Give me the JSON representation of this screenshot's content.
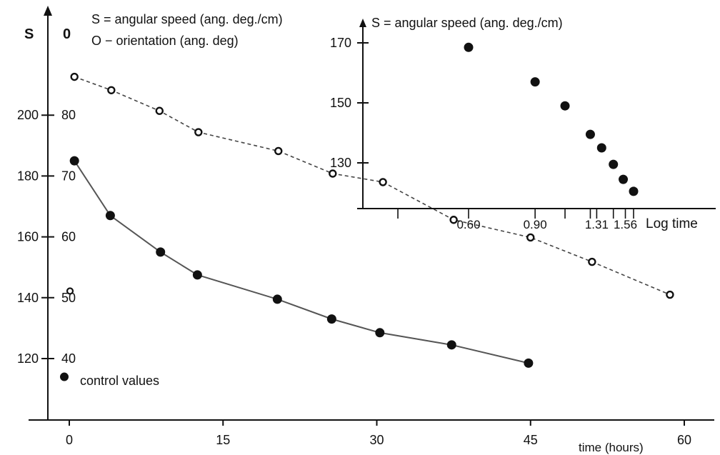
{
  "main_chart": {
    "s_axis_label": "S",
    "o_axis_label": "0",
    "legend_s": "S = angular speed (ang. deg./cm)",
    "legend_o": "O − orientation (ang. deg)",
    "xlabel": "time (hours)",
    "x_ticks": [
      "0",
      "15",
      "30",
      "45",
      "60"
    ],
    "s_ticks": [
      "200",
      "180",
      "160",
      "140",
      "120"
    ],
    "o_ticks": [
      "80",
      "70",
      "60",
      "50",
      "40"
    ],
    "control_label": "control values"
  },
  "inset_chart": {
    "legend": "S = angular speed (ang. deg./cm)",
    "xlabel": "Log time",
    "y_ticks": [
      "170",
      "150",
      "130"
    ],
    "x_tick_labels": [
      "0.60",
      "0.90",
      "1.31",
      "1.56"
    ]
  },
  "chart_data": [
    {
      "type": "line",
      "xlabel": "time (hours)",
      "ylabel": "S",
      "y2label": "0",
      "xlim": [
        0,
        60
      ],
      "ylim": [
        120,
        200
      ],
      "y2lim": [
        40,
        80
      ],
      "grid": false,
      "series": [
        {
          "name": "S = angular speed (ang. deg./cm)",
          "marker": "filled",
          "line": "solid",
          "axis": "S",
          "x": [
            0.5,
            4,
            8.9,
            12.5,
            20.3,
            25.6,
            30.3,
            37.3,
            44.8
          ],
          "values": [
            185,
            167,
            155,
            147.5,
            139.5,
            133,
            128.5,
            124.5,
            118.5
          ]
        },
        {
          "name": "O − orientation (ang. deg)",
          "marker": "open",
          "line": "dashed",
          "axis": "O",
          "x": [
            0.5,
            4.1,
            8.8,
            12.6,
            20.4,
            25.7,
            30.6,
            37.5,
            45,
            51,
            58.6
          ],
          "values": [
            86.3,
            84.1,
            80.7,
            77.2,
            74.1,
            70.4,
            69,
            62.8,
            59.9,
            55.9,
            50.5
          ]
        }
      ],
      "control_values": {
        "label": "control values",
        "S": 114,
        "O": 51.1
      }
    },
    {
      "type": "scatter",
      "title": "S = angular speed (ang. deg./cm)",
      "xlabel": "Log time",
      "xscale": "log",
      "x_tick_labels": [
        "0.60",
        "0.90",
        "1.31",
        "1.56"
      ],
      "yticks": [
        170,
        150,
        130
      ],
      "x": [
        0.6,
        0.9,
        1.08,
        1.26,
        1.35,
        1.45,
        1.54,
        1.64
      ],
      "values": [
        168.5,
        157,
        149,
        139.5,
        135,
        129.5,
        124.5,
        120.5
      ]
    }
  ]
}
